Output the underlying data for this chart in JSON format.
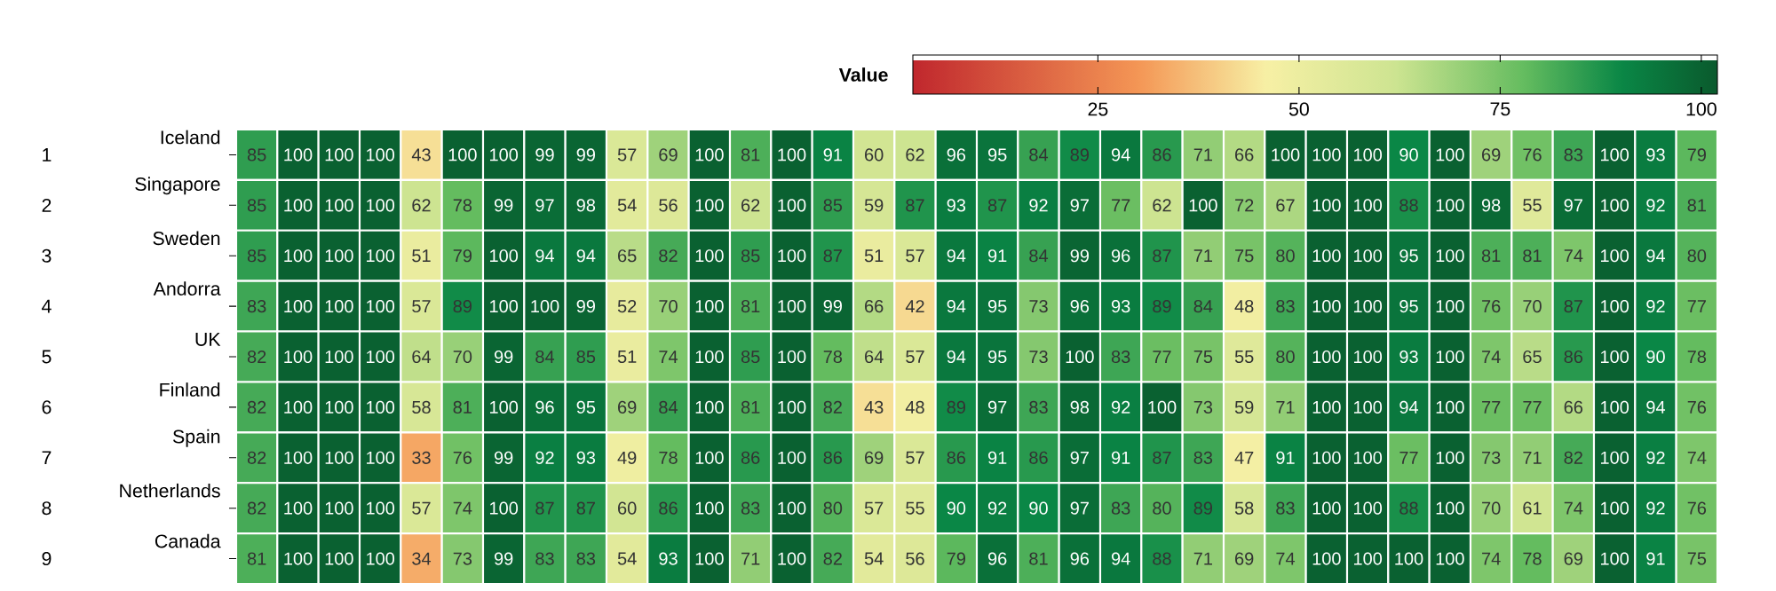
{
  "chart_data": {
    "type": "heatmap",
    "clabel": "Value",
    "clim": [
      2,
      102
    ],
    "cticks": [
      25,
      50,
      75,
      100
    ],
    "data_labels": true,
    "categories": [
      null,
      null,
      null,
      null,
      null,
      null,
      null,
      null,
      null,
      null,
      null,
      null,
      null,
      null,
      null,
      null,
      null,
      null,
      null,
      null,
      null,
      null,
      null,
      null,
      null,
      null,
      null,
      null,
      null,
      null,
      null,
      null,
      null,
      null,
      null,
      null
    ],
    "y_categories": [
      "Iceland",
      "Singapore",
      "Sweden",
      "Andorra",
      "UK",
      "Finland",
      "Spain",
      "Netherlands",
      "Canada"
    ],
    "y2_categories": [
      "1",
      "2",
      "3",
      "4",
      "5",
      "6",
      "7",
      "8",
      "9"
    ],
    "cells": [
      [
        85,
        100,
        100,
        100,
        43,
        100,
        100,
        99,
        99,
        57,
        69,
        100,
        81,
        100,
        91,
        60,
        62,
        96,
        95,
        84,
        89,
        94,
        86,
        71,
        66,
        100,
        100,
        100,
        90,
        100,
        69,
        76,
        83,
        100,
        93,
        79
      ],
      [
        85,
        100,
        100,
        100,
        62,
        78,
        99,
        97,
        98,
        54,
        56,
        100,
        62,
        100,
        85,
        59,
        87,
        93,
        87,
        92,
        97,
        77,
        62,
        100,
        72,
        67,
        100,
        100,
        88,
        100,
        98,
        55,
        97,
        100,
        92,
        81
      ],
      [
        85,
        100,
        100,
        100,
        51,
        79,
        100,
        94,
        94,
        65,
        82,
        100,
        85,
        100,
        87,
        51,
        57,
        94,
        91,
        84,
        99,
        96,
        87,
        71,
        75,
        80,
        100,
        100,
        95,
        100,
        81,
        81,
        74,
        100,
        94,
        80
      ],
      [
        83,
        100,
        100,
        100,
        57,
        89,
        100,
        100,
        99,
        52,
        70,
        100,
        81,
        100,
        99,
        66,
        42,
        94,
        95,
        73,
        96,
        93,
        89,
        84,
        48,
        83,
        100,
        100,
        95,
        100,
        76,
        70,
        87,
        100,
        92,
        77
      ],
      [
        82,
        100,
        100,
        100,
        64,
        70,
        99,
        84,
        85,
        51,
        74,
        100,
        85,
        100,
        78,
        64,
        57,
        94,
        95,
        73,
        100,
        83,
        77,
        75,
        55,
        80,
        100,
        100,
        93,
        100,
        74,
        65,
        86,
        100,
        90,
        78
      ],
      [
        82,
        100,
        100,
        100,
        58,
        81,
        100,
        96,
        95,
        69,
        84,
        100,
        81,
        100,
        82,
        43,
        48,
        89,
        97,
        83,
        98,
        92,
        100,
        73,
        59,
        71,
        100,
        100,
        94,
        100,
        77,
        77,
        66,
        100,
        94,
        76
      ],
      [
        82,
        100,
        100,
        100,
        33,
        76,
        99,
        92,
        93,
        49,
        78,
        100,
        86,
        100,
        86,
        69,
        57,
        86,
        91,
        86,
        97,
        91,
        87,
        83,
        47,
        91,
        100,
        100,
        77,
        100,
        73,
        71,
        82,
        100,
        92,
        74
      ],
      [
        82,
        100,
        100,
        100,
        57,
        74,
        100,
        87,
        87,
        60,
        86,
        100,
        83,
        100,
        80,
        57,
        55,
        90,
        92,
        90,
        97,
        83,
        80,
        89,
        58,
        83,
        100,
        100,
        88,
        100,
        70,
        61,
        74,
        100,
        92,
        76
      ],
      [
        81,
        100,
        100,
        100,
        34,
        73,
        99,
        83,
        83,
        54,
        93,
        100,
        71,
        100,
        82,
        54,
        56,
        79,
        96,
        81,
        96,
        94,
        88,
        71,
        69,
        74,
        100,
        100,
        100,
        100,
        74,
        78,
        69,
        100,
        91,
        75
      ]
    ]
  }
}
